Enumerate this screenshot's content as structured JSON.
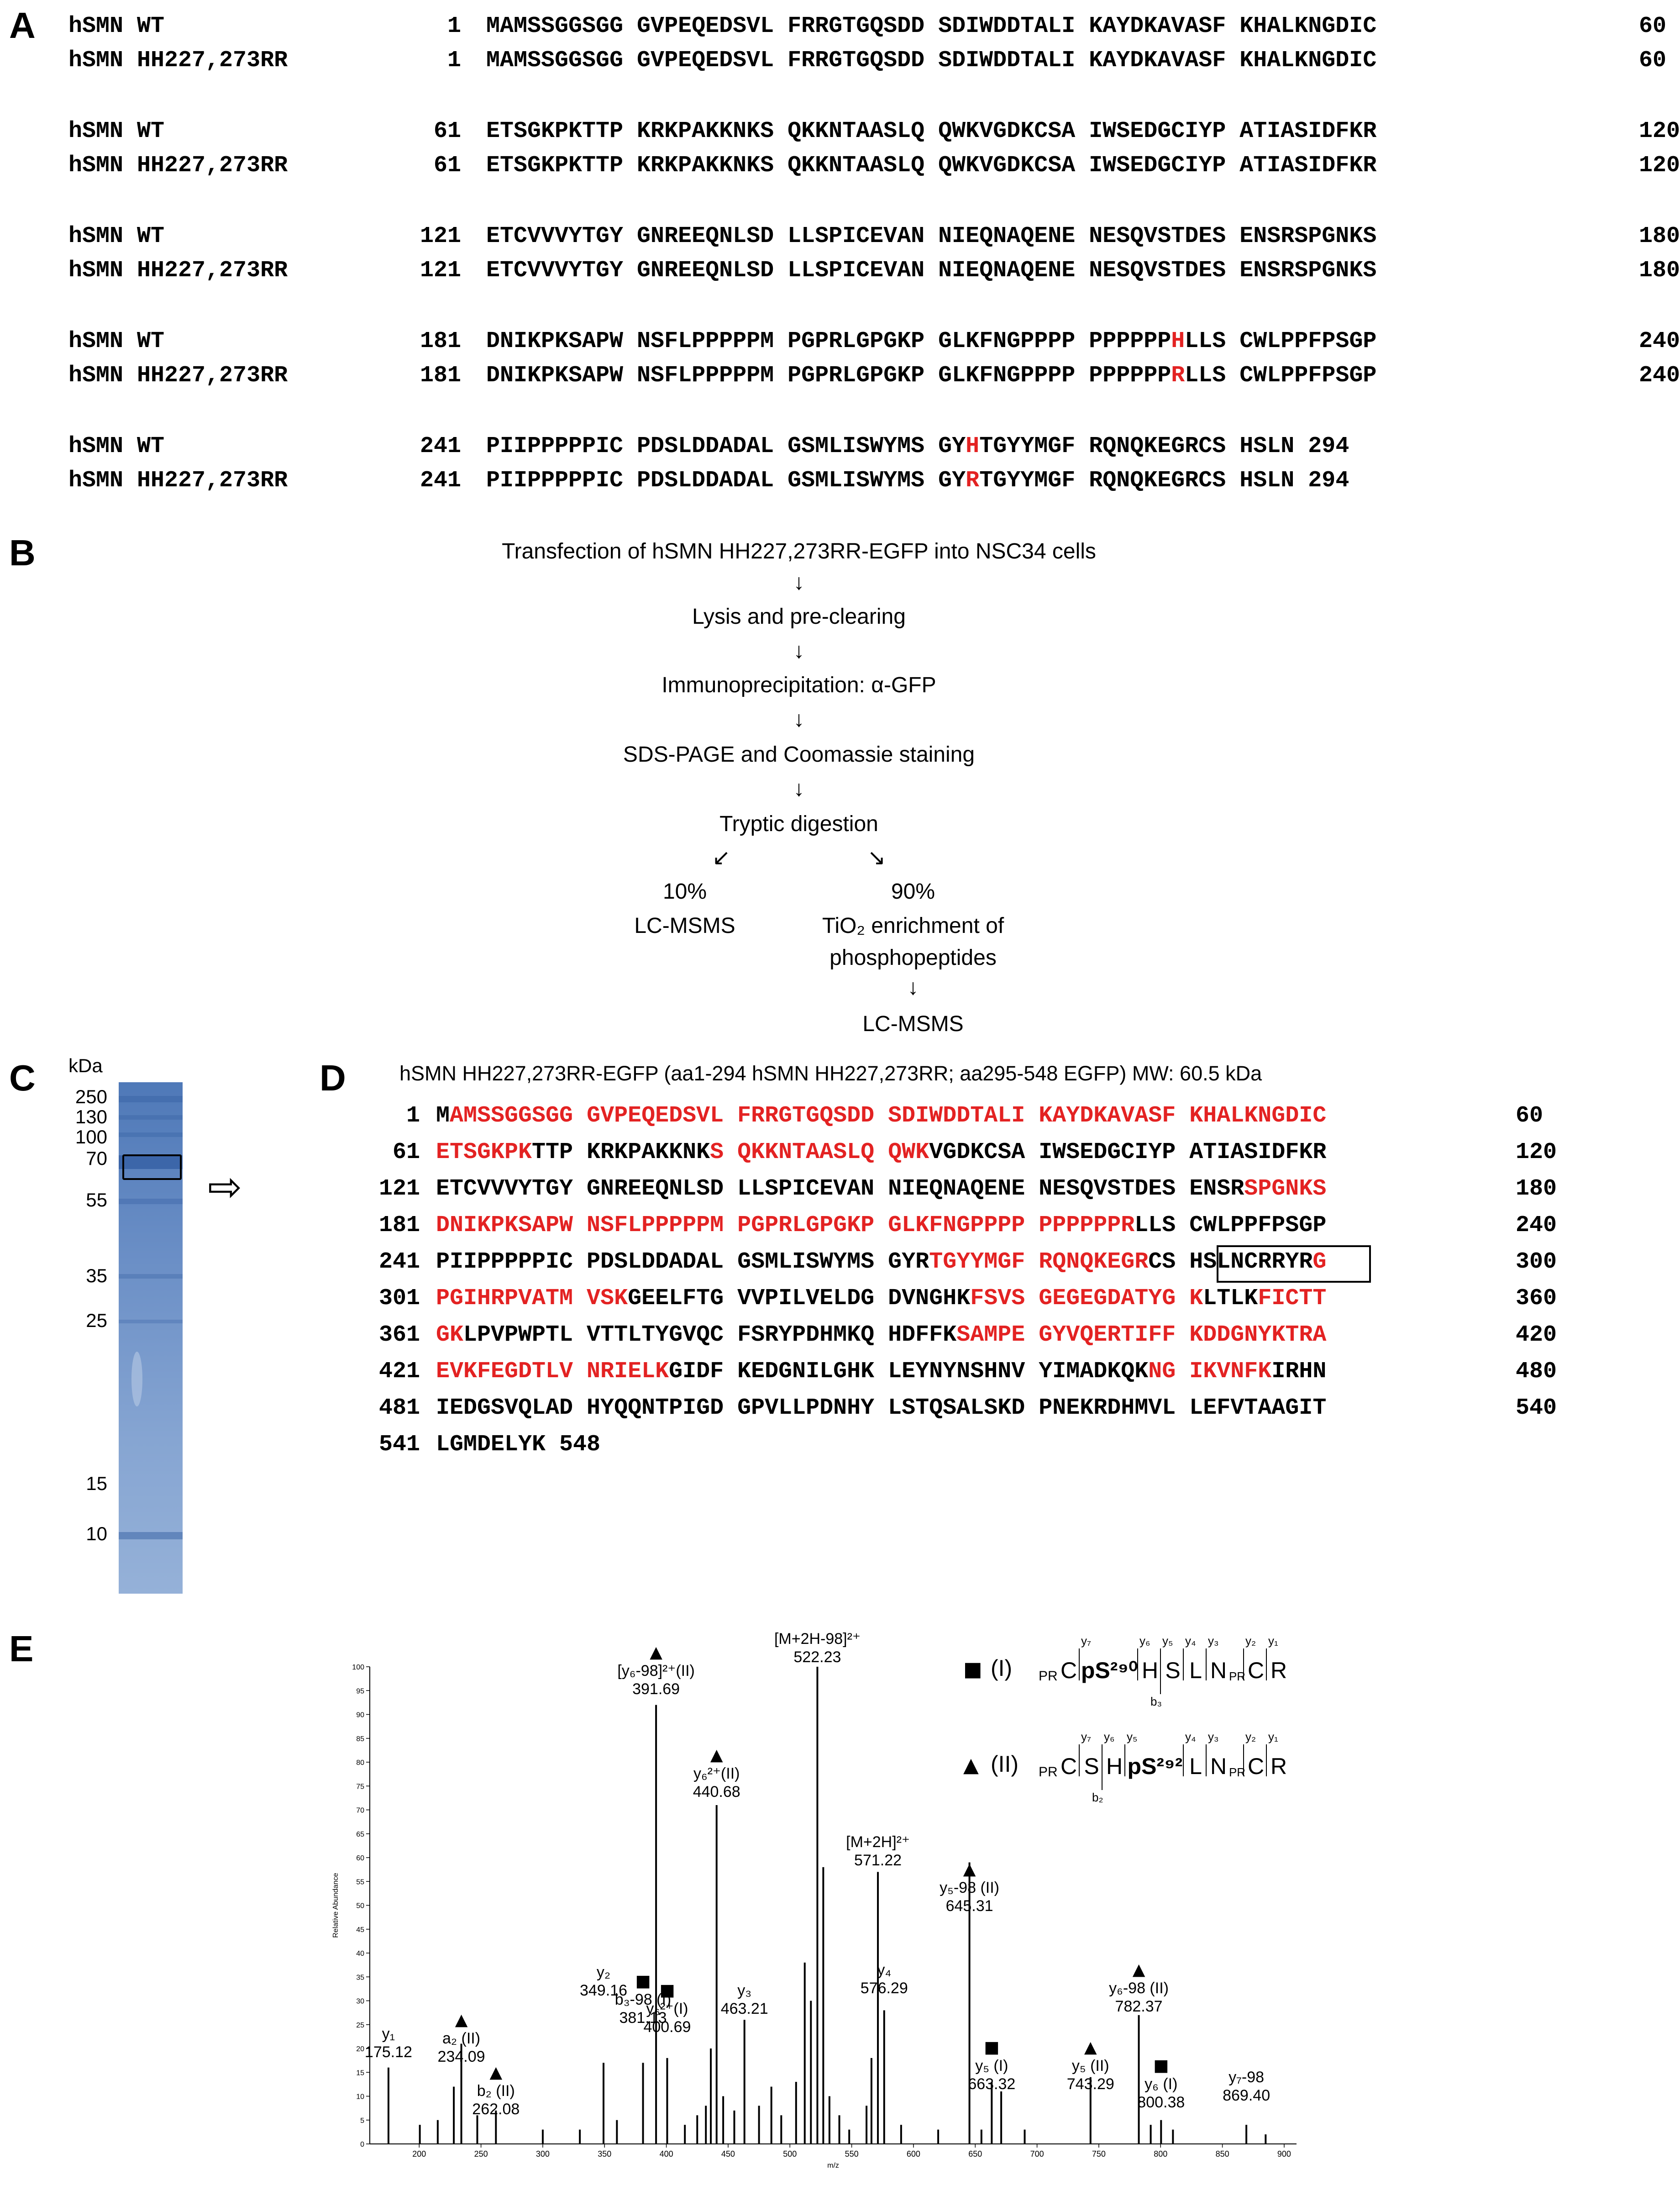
{
  "panels": {
    "A": "A",
    "B": "B",
    "C": "C",
    "D": "D",
    "E": "E"
  },
  "panelA": {
    "blocks": [
      {
        "rows": [
          {
            "label": "hSMN WT",
            "start": "1",
            "segments": [
              {
                "t": "MAMSSGGSGG GVPEQEDSVL FRRGTGQSDD SDIWDDTALI KAYDKAVASF KHALKNGDIC",
                "r": false
              }
            ],
            "end": "60"
          },
          {
            "label": "hSMN HH227,273RR",
            "start": "1",
            "segments": [
              {
                "t": "MAMSSGGSGG GVPEQEDSVL FRRGTGQSDD SDIWDDTALI KAYDKAVASF KHALKNGDIC",
                "r": false
              }
            ],
            "end": "60"
          }
        ]
      },
      {
        "rows": [
          {
            "label": "hSMN WT",
            "start": "61",
            "segments": [
              {
                "t": "ETSGKPKTTP KRKPAKKNKS QKKNTAASLQ QWKVGDKCSA IWSEDGCIYP ATIASIDFKR",
                "r": false
              }
            ],
            "end": "120"
          },
          {
            "label": "hSMN HH227,273RR",
            "start": "61",
            "segments": [
              {
                "t": "ETSGKPKTTP KRKPAKKNKS QKKNTAASLQ QWKVGDKCSA IWSEDGCIYP ATIASIDFKR",
                "r": false
              }
            ],
            "end": "120"
          }
        ]
      },
      {
        "rows": [
          {
            "label": "hSMN WT",
            "start": "121",
            "segments": [
              {
                "t": "ETCVVVYTGY GNREEQNLSD LLSPICEVAN NIEQNAQENE NESQVSTDES ENSRSPGNKS",
                "r": false
              }
            ],
            "end": "180"
          },
          {
            "label": "hSMN HH227,273RR",
            "start": "121",
            "segments": [
              {
                "t": "ETCVVVYTGY GNREEQNLSD LLSPICEVAN NIEQNAQENE NESQVSTDES ENSRSPGNKS",
                "r": false
              }
            ],
            "end": "180"
          }
        ]
      },
      {
        "rows": [
          {
            "label": "hSMN WT",
            "start": "181",
            "segments": [
              {
                "t": "DNIKPKSAPW NSFLPPPPPM PGPRLGPGKP GLKFNGPPPP PPPPPP",
                "r": false
              },
              {
                "t": "H",
                "r": true
              },
              {
                "t": "LLS CWLPPFPSGP",
                "r": false
              }
            ],
            "end": "240"
          },
          {
            "label": "hSMN HH227,273RR",
            "start": "181",
            "segments": [
              {
                "t": "DNIKPKSAPW NSFLPPPPPM PGPRLGPGKP GLKFNGPPPP PPPPPP",
                "r": false
              },
              {
                "t": "R",
                "r": true
              },
              {
                "t": "LLS CWLPPFPSGP",
                "r": false
              }
            ],
            "end": "240"
          }
        ]
      },
      {
        "rows": [
          {
            "label": "hSMN WT",
            "start": "241",
            "segments": [
              {
                "t": "PIIPPPPPIC PDSLDDADAL GSMLISWYMS GY",
                "r": false
              },
              {
                "t": "H",
                "r": true
              },
              {
                "t": "TGYYMGF RQNQKEGRCS HSLN 294",
                "r": false
              }
            ],
            "end": ""
          },
          {
            "label": "hSMN HH227,273RR",
            "start": "241",
            "segments": [
              {
                "t": "PIIPPPPPIC PDSLDDADAL GSMLISWYMS GY",
                "r": false
              },
              {
                "t": "R",
                "r": true
              },
              {
                "t": "TGYYMGF RQNQKEGRCS HSLN 294",
                "r": false
              }
            ],
            "end": ""
          }
        ]
      }
    ]
  },
  "panelB": {
    "steps": [
      "Transfection of hSMN HH227,273RR-EGFP into NSC34 cells",
      "Lysis and pre-clearing",
      "Immunoprecipitation: α-GFP",
      "SDS-PAGE and Coomassie staining",
      "Tryptic digestion"
    ],
    "arrow_down": "↓",
    "arrow_left": "↙",
    "arrow_right": "↘",
    "left_branch": [
      "10%",
      "LC-MSMS"
    ],
    "right_branch": [
      "90%",
      "TiO₂ enrichment of",
      "phosphopeptides"
    ],
    "right_final": "LC-MSMS"
  },
  "panelC": {
    "unit": "kDa",
    "markers": [
      "250",
      "130",
      "100",
      "70",
      "55",
      "35",
      "25",
      "15",
      "10"
    ],
    "arrow": "⇨"
  },
  "panelD": {
    "title": "hSMN HH227,273RR-EGFP (aa1-294 hSMN HH227,273RR; aa295-548 EGFP) MW: 60.5 kDa",
    "rows": [
      {
        "start": "1",
        "end": "60",
        "segments": [
          {
            "t": "M",
            "r": false
          },
          {
            "t": "AMSSGGSGG GVPEQEDSVL FRRGTGQSDD SDIWDDTALI KAYDKAVASF KHALKNGDIC",
            "r": true
          }
        ]
      },
      {
        "start": "61",
        "end": "120",
        "segments": [
          {
            "t": "ETSGKPK",
            "r": true
          },
          {
            "t": "TTP KRKPAKKNK",
            "r": false
          },
          {
            "t": "S QKKNTAASLQ QWK",
            "r": true
          },
          {
            "t": "VGDKCSA IWSEDGCIYP ATIASIDFKR",
            "r": false
          }
        ]
      },
      {
        "start": "121",
        "end": "180",
        "segments": [
          {
            "t": "ETCVVVYTGY GNREEQNLSD LLSPICEVAN NIEQNAQENE NESQVSTDES ENSR",
            "r": false
          },
          {
            "t": "SPGNKS",
            "r": true
          }
        ]
      },
      {
        "start": "181",
        "end": "240",
        "segments": [
          {
            "t": "DNIKPKSAPW NSFLPPPPPM PGPRLGPGKP GLKFNGPPPP PPPPPPR",
            "r": true
          },
          {
            "t": "LLS CWLPPFPSGP",
            "r": false
          }
        ]
      },
      {
        "start": "241",
        "end": "300",
        "segments": [
          {
            "t": "PIIPPPPPIC PDSLDDADAL GSMLISWYMS GYR",
            "r": false
          },
          {
            "t": "TGYYMGF RQNQKEGR",
            "r": true
          },
          {
            "t": "CS HSLNCR",
            "r": false
          },
          {
            "t": "RYR",
            "r": false
          },
          {
            "t": "G",
            "r": true
          }
        ]
      },
      {
        "start": "301",
        "end": "360",
        "segments": [
          {
            "t": "PGIHRPVATM VSK",
            "r": true
          },
          {
            "t": "GEELFTG VVPILVELDG DVNGHK",
            "r": false
          },
          {
            "t": "FSVS GEGEGDATYG K",
            "r": true
          },
          {
            "t": "LTLK",
            "r": false
          },
          {
            "t": "FICTT",
            "r": true
          }
        ]
      },
      {
        "start": "361",
        "end": "420",
        "segments": [
          {
            "t": "GK",
            "r": true
          },
          {
            "t": "LPVPWPTL VTTLTYGVQC FSRYPDHMKQ HDFFK",
            "r": false
          },
          {
            "t": "SAMPE GYVQERTIFF KDDGNYKTRA",
            "r": true
          }
        ]
      },
      {
        "start": "421",
        "end": "480",
        "segments": [
          {
            "t": "EVKFEGDTLV NRIELK",
            "r": true
          },
          {
            "t": "GIDF KEDGNILGHK LEYNYNSHNV YIMADKQK",
            "r": false
          },
          {
            "t": "NG IKVNFK",
            "r": true
          },
          {
            "t": "IRHN",
            "r": false
          }
        ]
      },
      {
        "start": "481",
        "end": "540",
        "segments": [
          {
            "t": "IEDGSVQLAD HYQQNTPIGD GPVLLPDNHY LSTQSALSKD PNEKRDHMVL LEFVTAAGIT",
            "r": false
          }
        ]
      },
      {
        "start": "541",
        "end": "",
        "segments": [
          {
            "t": "LGMDELYK 548",
            "r": false
          }
        ]
      }
    ]
  },
  "panelE": {
    "chart_data": {
      "type": "bar",
      "xlabel": "m/z",
      "ylabel": "Relative Abundance",
      "xlim": [
        160,
        910
      ],
      "ylim": [
        0,
        100
      ],
      "x_ticks": [
        200,
        250,
        300,
        350,
        400,
        450,
        500,
        550,
        600,
        650,
        700,
        750,
        800,
        850,
        900
      ],
      "y_ticks": [
        0,
        5,
        10,
        15,
        20,
        25,
        30,
        35,
        40,
        45,
        50,
        55,
        60,
        65,
        70,
        75,
        80,
        85,
        90,
        95,
        100
      ],
      "peaks": [
        {
          "x": 175.12,
          "y": 16
        },
        {
          "x": 200.5,
          "y": 4
        },
        {
          "x": 215.0,
          "y": 5
        },
        {
          "x": 228.0,
          "y": 12
        },
        {
          "x": 234.09,
          "y": 21
        },
        {
          "x": 247.0,
          "y": 6
        },
        {
          "x": 262.08,
          "y": 7
        },
        {
          "x": 300.0,
          "y": 3
        },
        {
          "x": 330.0,
          "y": 3
        },
        {
          "x": 349.16,
          "y": 17
        },
        {
          "x": 360.0,
          "y": 5
        },
        {
          "x": 381.13,
          "y": 17
        },
        {
          "x": 391.69,
          "y": 92
        },
        {
          "x": 400.69,
          "y": 18
        },
        {
          "x": 415.0,
          "y": 4
        },
        {
          "x": 425.0,
          "y": 6
        },
        {
          "x": 432.0,
          "y": 8
        },
        {
          "x": 436.0,
          "y": 20
        },
        {
          "x": 440.68,
          "y": 71
        },
        {
          "x": 446.0,
          "y": 10
        },
        {
          "x": 455.0,
          "y": 7
        },
        {
          "x": 463.21,
          "y": 26
        },
        {
          "x": 475.0,
          "y": 8
        },
        {
          "x": 485.0,
          "y": 12
        },
        {
          "x": 493.0,
          "y": 6
        },
        {
          "x": 505.0,
          "y": 13
        },
        {
          "x": 512.0,
          "y": 38
        },
        {
          "x": 517.0,
          "y": 30
        },
        {
          "x": 522.23,
          "y": 100
        },
        {
          "x": 527.0,
          "y": 58
        },
        {
          "x": 532.0,
          "y": 10
        },
        {
          "x": 540.0,
          "y": 6
        },
        {
          "x": 548.0,
          "y": 3
        },
        {
          "x": 562.0,
          "y": 8
        },
        {
          "x": 566.0,
          "y": 18
        },
        {
          "x": 571.22,
          "y": 57
        },
        {
          "x": 576.29,
          "y": 28
        },
        {
          "x": 590.0,
          "y": 4
        },
        {
          "x": 620.0,
          "y": 3
        },
        {
          "x": 645.31,
          "y": 59
        },
        {
          "x": 655.0,
          "y": 3
        },
        {
          "x": 663.32,
          "y": 13
        },
        {
          "x": 671.0,
          "y": 11
        },
        {
          "x": 690.0,
          "y": 3
        },
        {
          "x": 743.29,
          "y": 14
        },
        {
          "x": 782.37,
          "y": 27
        },
        {
          "x": 792.0,
          "y": 4
        },
        {
          "x": 800.38,
          "y": 5
        },
        {
          "x": 810.0,
          "y": 3
        },
        {
          "x": 869.4,
          "y": 4
        },
        {
          "x": 885.0,
          "y": 2
        }
      ]
    },
    "annotations": [
      {
        "marker": "",
        "lines": [
          "y₁",
          "175.12"
        ]
      },
      {
        "marker": "▲",
        "lines": [
          "a₂ (II)",
          "234.09"
        ]
      },
      {
        "marker": "▲",
        "lines": [
          "b₂ (II)",
          "262.08"
        ]
      },
      {
        "marker": "",
        "lines": [
          "y₂",
          "349.16"
        ]
      },
      {
        "marker": "■",
        "lines": [
          "b₃-98 (I)",
          "381.13"
        ]
      },
      {
        "marker": "▲",
        "lines": [
          "[y₆-98]²⁺(II)",
          "391.69"
        ]
      },
      {
        "marker": "■",
        "lines": [
          "y₆²⁺(I)",
          "400.69"
        ]
      },
      {
        "marker": "▲",
        "lines": [
          "y₆²⁺(II)",
          "440.68"
        ]
      },
      {
        "marker": "",
        "lines": [
          "y₃",
          "463.21"
        ]
      },
      {
        "marker": "",
        "lines": [
          "[M+2H-98]²⁺",
          "522.23"
        ]
      },
      {
        "marker": "",
        "lines": [
          "[M+2H]²⁺",
          "571.22"
        ]
      },
      {
        "marker": "",
        "lines": [
          "y₄",
          "576.29"
        ]
      },
      {
        "marker": "▲",
        "lines": [
          "y₅-98 (II)",
          "645.31"
        ]
      },
      {
        "marker": "■",
        "lines": [
          "y₅ (I)",
          "663.32"
        ]
      },
      {
        "marker": "▲",
        "lines": [
          "y₅ (II)",
          "743.29"
        ]
      },
      {
        "marker": "▲",
        "lines": [
          "y₆-98 (II)",
          "782.37"
        ]
      },
      {
        "marker": "■",
        "lines": [
          "y₆ (I)",
          "800.38"
        ]
      },
      {
        "marker": "",
        "lines": [
          "y₇-98",
          "869.40"
        ]
      }
    ],
    "legend": {
      "I": {
        "marker": "■",
        "id": "(I)",
        "prefix": "PR",
        "residues": [
          "C",
          "pS²⁹⁰",
          "H",
          "S",
          "L",
          "N",
          "C",
          "R"
        ],
        "frag_top": [
          "y₇",
          "y₆",
          "y₅",
          "y₄",
          "y₃",
          "y₂",
          "y₁"
        ],
        "frag_bottom": "b₃"
      },
      "II": {
        "marker": "▲",
        "id": "(II)",
        "prefix": "PR",
        "residues": [
          "C",
          "S",
          "H",
          "pS²⁹²",
          "L",
          "N",
          "C",
          "R"
        ],
        "frag_top": [
          "y₇",
          "y₆",
          "y₅",
          "y₄",
          "y₃",
          "y₂",
          "y₁"
        ],
        "frag_bottom": "b₂"
      }
    }
  }
}
